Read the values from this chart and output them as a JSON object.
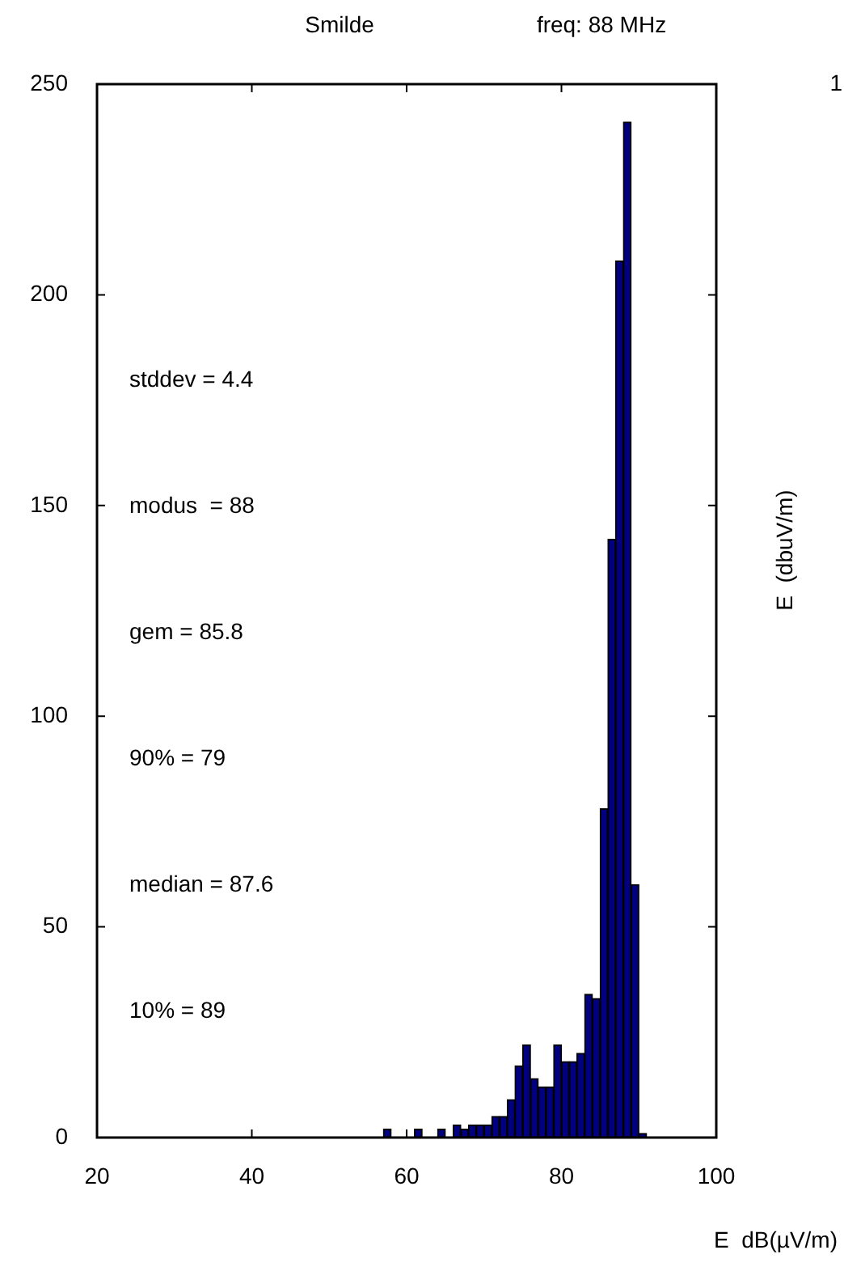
{
  "chart_data": {
    "type": "histogram",
    "title": "Smilde",
    "subtitle": "freq: 88 MHz",
    "xlabel": "E  dB(µV/m)",
    "y2label": "E  (dbuV/m)",
    "annotations": [
      "stddev = 4.4",
      "modus  = 88",
      "gem = 85.8",
      "90% = 79",
      "median = 87.6",
      "10% = 89",
      "1"
    ],
    "bins": [
      57,
      58,
      59,
      60,
      61,
      62,
      63,
      64,
      65,
      66,
      67,
      68,
      69,
      70,
      71,
      72,
      73,
      74,
      75,
      76,
      77,
      78,
      79,
      80,
      81,
      82,
      83,
      84,
      85,
      86,
      87,
      88,
      89,
      90,
      91
    ],
    "values": [
      2,
      0,
      0,
      0,
      2,
      0,
      0,
      2,
      0,
      3,
      2,
      3,
      3,
      3,
      5,
      5,
      9,
      17,
      22,
      14,
      12,
      12,
      22,
      18,
      18,
      20,
      34,
      33,
      78,
      142,
      208,
      241,
      60,
      1
    ],
    "color": "#000080",
    "xlim": [
      20,
      100
    ],
    "xticks": [
      20,
      40,
      60,
      80,
      100
    ],
    "ylim": [
      0,
      250
    ],
    "yticks": [
      0,
      50,
      100,
      150,
      200,
      250
    ],
    "legend": false
  }
}
